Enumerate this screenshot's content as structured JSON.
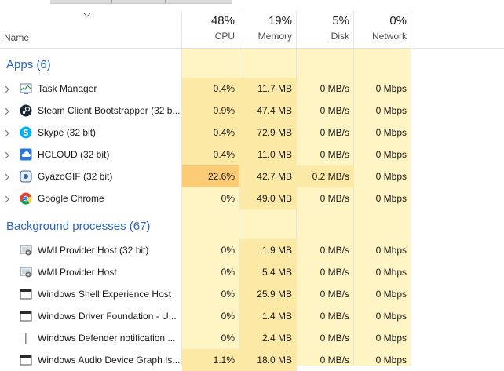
{
  "columns": {
    "name": {
      "label": "Name"
    },
    "cpu": {
      "percent": "48%",
      "label": "CPU"
    },
    "memory": {
      "percent": "19%",
      "label": "Memory"
    },
    "disk": {
      "percent": "5%",
      "label": "Disk"
    },
    "network": {
      "percent": "0%",
      "label": "Network"
    }
  },
  "groups": {
    "apps": {
      "title": "Apps (6)",
      "rows": [
        {
          "name": "Task Manager",
          "cpu": "0.4%",
          "memory": "11.7 MB",
          "disk": "0 MB/s",
          "network": "0 Mbps",
          "icon": "task-manager-icon"
        },
        {
          "name": "Steam Client Bootstrapper (32 b...",
          "cpu": "0.9%",
          "memory": "47.4 MB",
          "disk": "0 MB/s",
          "network": "0 Mbps",
          "icon": "steam-icon"
        },
        {
          "name": "Skype (32 bit)",
          "cpu": "0.4%",
          "memory": "72.9 MB",
          "disk": "0 MB/s",
          "network": "0 Mbps",
          "icon": "skype-icon"
        },
        {
          "name": "HCLOUD (32 bit)",
          "cpu": "0.4%",
          "memory": "11.0 MB",
          "disk": "0 MB/s",
          "network": "0 Mbps",
          "icon": "hcloud-icon"
        },
        {
          "name": "GyazoGIF (32 bit)",
          "cpu": "22.6%",
          "memory": "42.7 MB",
          "disk": "0.2 MB/s",
          "network": "0 Mbps",
          "icon": "gyazo-icon"
        },
        {
          "name": "Google Chrome",
          "cpu": "0%",
          "memory": "49.0 MB",
          "disk": "0 MB/s",
          "network": "0 Mbps",
          "icon": "chrome-icon"
        }
      ]
    },
    "background": {
      "title": "Background processes (67)",
      "rows": [
        {
          "name": "WMI Provider Host (32 bit)",
          "cpu": "0%",
          "memory": "1.9 MB",
          "disk": "0 MB/s",
          "network": "0 Mbps",
          "icon": "wmi-icon"
        },
        {
          "name": "WMI Provider Host",
          "cpu": "0%",
          "memory": "5.4 MB",
          "disk": "0 MB/s",
          "network": "0 Mbps",
          "icon": "wmi-icon"
        },
        {
          "name": "Windows Shell Experience Host",
          "cpu": "0%",
          "memory": "25.9 MB",
          "disk": "0 MB/s",
          "network": "0 Mbps",
          "icon": "window-icon"
        },
        {
          "name": "Windows Driver Foundation - U...",
          "cpu": "0%",
          "memory": "1.4 MB",
          "disk": "0 MB/s",
          "network": "0 Mbps",
          "icon": "window-icon"
        },
        {
          "name": "Windows Defender notification ...",
          "cpu": "0%",
          "memory": "2.4 MB",
          "disk": "0 MB/s",
          "network": "0 Mbps",
          "icon": "defender-icon"
        },
        {
          "name": "Windows Audio Device Graph Is...",
          "cpu": "1.1%",
          "memory": "18.0 MB",
          "disk": "0 MB/s",
          "network": "0 Mbps",
          "icon": "window-icon"
        }
      ]
    }
  },
  "colors": {
    "heat_low": "#fff4c4",
    "heat_med": "#fde9a6",
    "heat_high": "#fbcc75",
    "group_title": "#2a63c7"
  }
}
